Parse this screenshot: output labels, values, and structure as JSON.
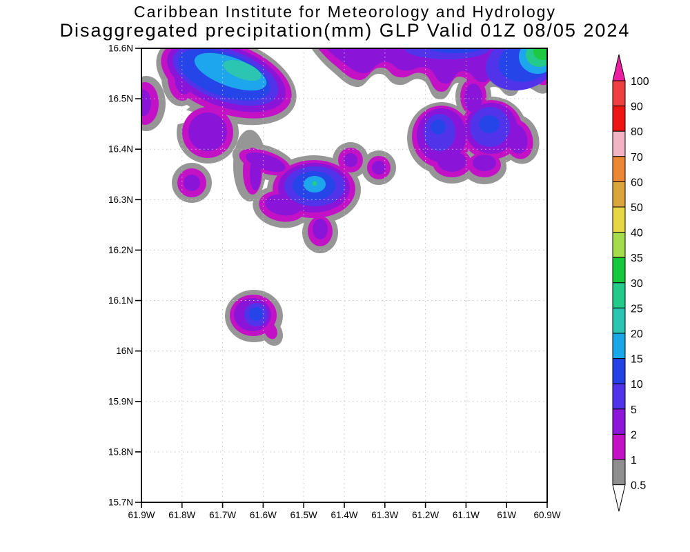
{
  "header": {
    "line1": "Caribbean Institute for Meteorology and Hydrology",
    "line2": "Disaggregated precipitation(mm) GLP Valid 01Z 08/05 2024"
  },
  "chart_data": {
    "type": "heatmap",
    "title": "Caribbean Institute for Meteorology and Hydrology",
    "subtitle": "Disaggregated precipitation(mm) GLP Valid 01Z 08/05 2024",
    "variable": "Disaggregated precipitation",
    "units": "mm",
    "model": "GLP",
    "valid_time": "01Z 08/05 2024",
    "x_axis": {
      "ticks": [
        "61.9W",
        "61.8W",
        "61.7W",
        "61.6W",
        "61.5W",
        "61.4W",
        "61.3W",
        "61.2W",
        "61.1W",
        "61W",
        "60.9W"
      ],
      "range_deg_west": [
        61.9,
        60.9
      ],
      "grid": true
    },
    "y_axis": {
      "ticks": [
        "16.6N",
        "16.5N",
        "16.4N",
        "16.3N",
        "16.2N",
        "16.1N",
        "16N",
        "15.9N",
        "15.8N",
        "15.7N"
      ],
      "range_deg_north": [
        16.6,
        15.7
      ],
      "grid": true
    },
    "colorbar": {
      "orientation": "vertical",
      "position": "right",
      "boundary_labels": [
        "100",
        "90",
        "80",
        "70",
        "60",
        "50",
        "40",
        "35",
        "30",
        "25",
        "20",
        "15",
        "10",
        "5",
        "2",
        "1",
        "0.5"
      ],
      "cell_colors_top_to_bottom": [
        "#ee4040",
        "#ee1515",
        "#f2b4c4",
        "#ec8733",
        "#dba53d",
        "#e6d844",
        "#a4dc4e",
        "#16c83d",
        "#24ca8a",
        "#2cc5b2",
        "#1ba6e8",
        "#2441e4",
        "#5134ea",
        "#8c17d9",
        "#c312c6",
        "#8f8f8f"
      ],
      "over_arrow_color": "#ec1fa2",
      "under_arrow_color": "#ffffff"
    },
    "palette": {
      "gray_0p5_1": "#969696",
      "magenta_1_2": "#c312c6",
      "purple_2_5": "#8a15d8",
      "blueviolet_5_10": "#5134ea",
      "blue_10_15": "#2545e8",
      "skyblue_15_20": "#1ea6ec",
      "teal_20_25": "#2cc5b2",
      "seagreen_25_30": "#24ca8a",
      "green_30_35": "#1ec840",
      "white_hole": "#ffffff"
    },
    "precip_cells": [
      {
        "area": "northwest cluster at top edge",
        "center_lon": -61.73,
        "center_lat": 16.56,
        "peak_mm": "20-25"
      },
      {
        "area": "west-edge blob",
        "center_lon": -61.89,
        "center_lat": 16.49,
        "peak_mm": "2-5"
      },
      {
        "area": "northern band with northeast-corner maximum",
        "center_lon": -61.05,
        "center_lat": 16.58,
        "peak_mm": "30-35"
      },
      {
        "area": "northeast double-core cluster",
        "center_lon": -61.17,
        "center_lat": 16.44,
        "peak_mm": "10-15"
      },
      {
        "area": "central cluster with small 25-30 speck",
        "center_lon": -61.47,
        "center_lat": 16.33,
        "peak_mm": "25-30"
      },
      {
        "area": "small round cell west-central",
        "center_lon": -61.78,
        "center_lat": 16.33,
        "peak_mm": "2-5"
      },
      {
        "area": "small round cell east of central cluster",
        "center_lon": -61.32,
        "center_lat": 16.36,
        "peak_mm": "2-5"
      },
      {
        "area": "isolated southern cell",
        "center_lon": -61.62,
        "center_lat": 16.07,
        "peak_mm": "10-15"
      }
    ]
  }
}
